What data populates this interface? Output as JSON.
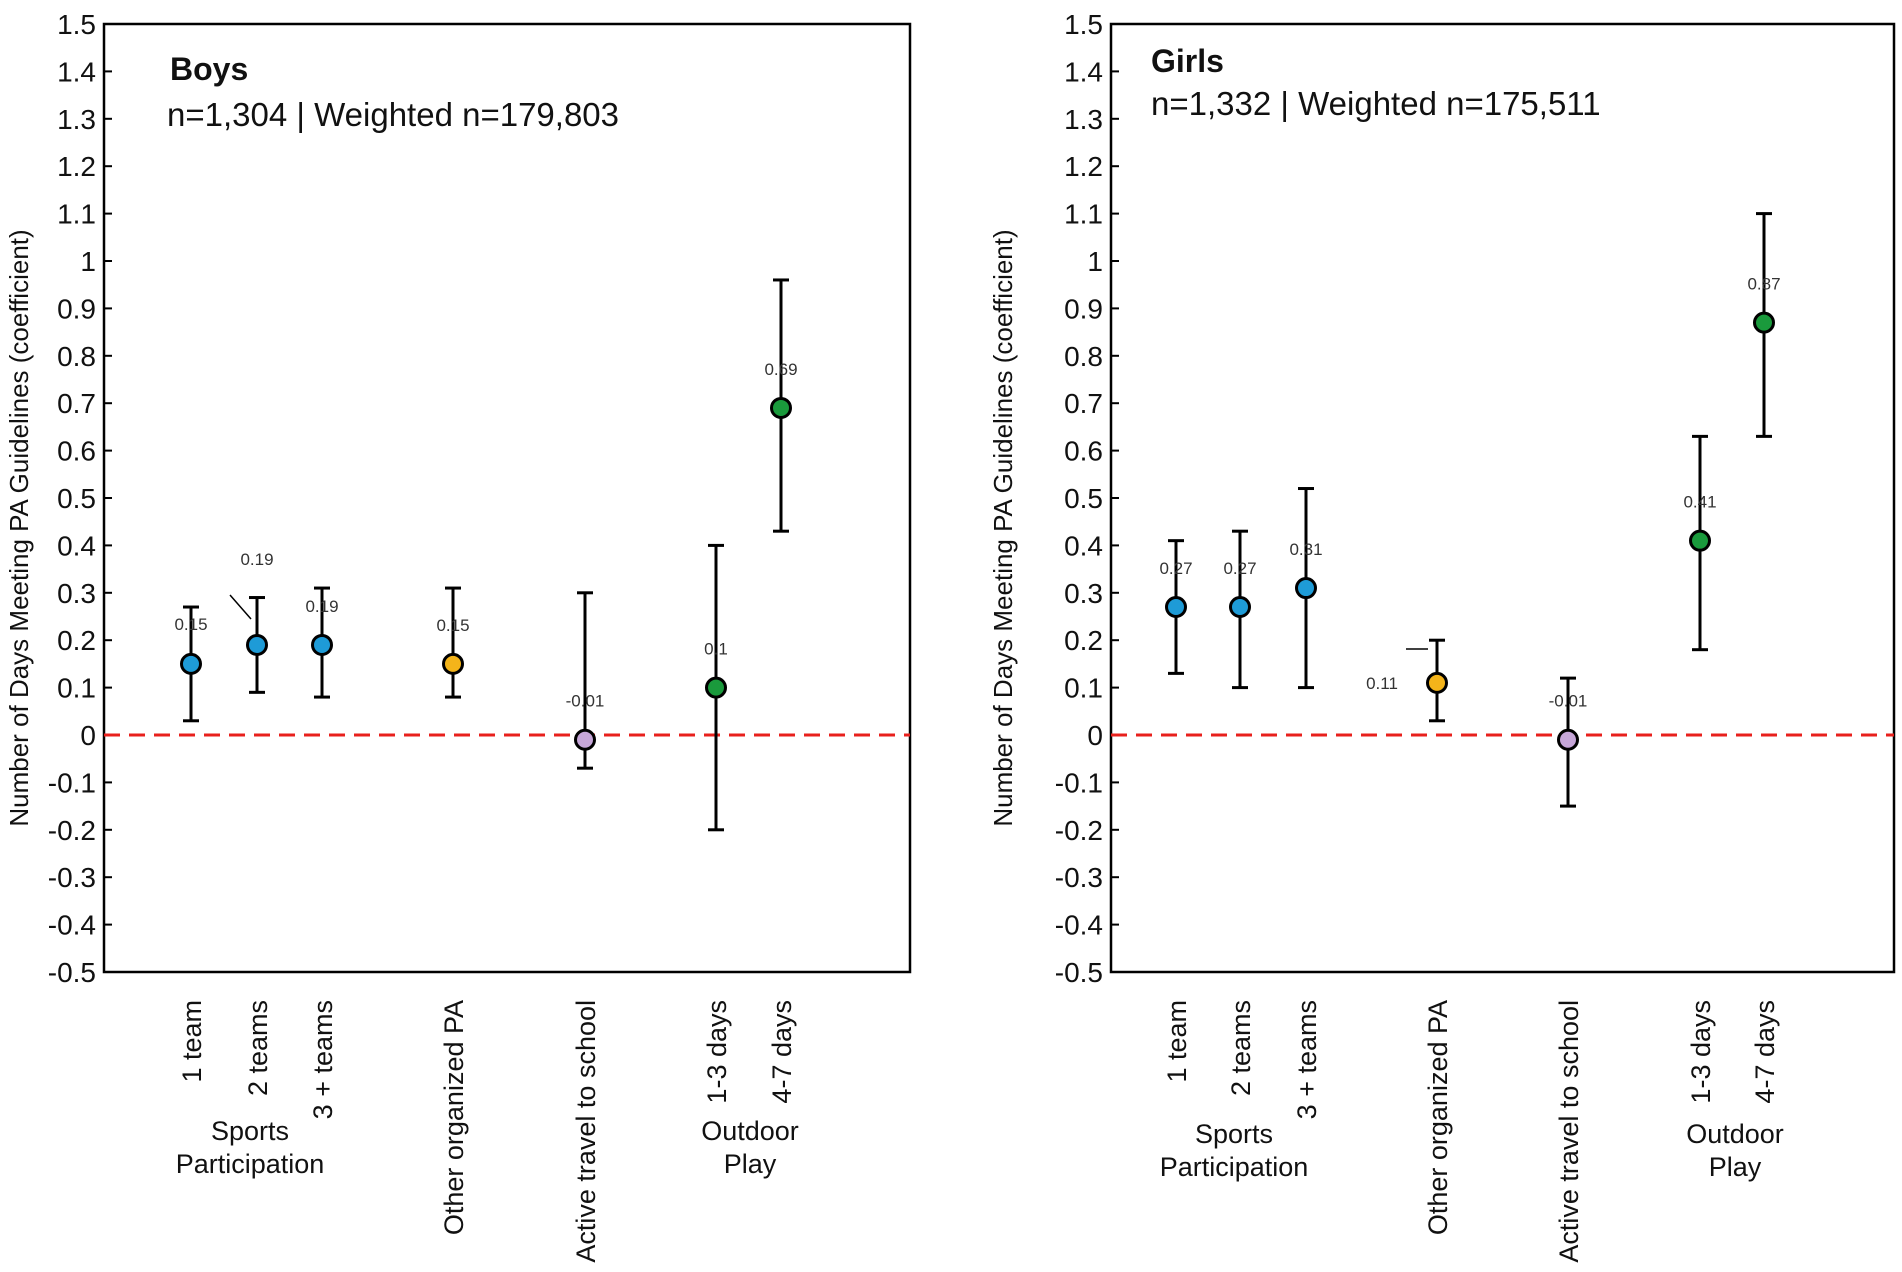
{
  "chart_data": [
    {
      "type": "scatter",
      "title": "Boys",
      "subtitle": "n=1,304 | Weighted n=179,803",
      "ylabel": "Number of Days Meeting PA Guidelines (coefficient)",
      "ylim": [
        -0.5,
        1.5
      ],
      "yticks": [
        "-0.5",
        "-0.4",
        "-0.3",
        "-0.2",
        "-0.1",
        "0",
        "0.1",
        "0.2",
        "0.3",
        "0.4",
        "0.5",
        "0.6",
        "0.7",
        "0.8",
        "0.9",
        "1",
        "1.1",
        "1.2",
        "1.3",
        "1.4",
        "1.5"
      ],
      "reference_line": 0,
      "groups": [
        {
          "label_lines": [
            "Sports",
            "Participation"
          ]
        },
        {
          "label_lines": [
            "Outdoor",
            "Play"
          ]
        }
      ],
      "points": [
        {
          "category": "1 team",
          "value": 0.15,
          "lower": 0.03,
          "upper": 0.27,
          "label": "0.15",
          "color": "#1e9bd7"
        },
        {
          "category": "2 teams",
          "value": 0.19,
          "lower": 0.09,
          "upper": 0.29,
          "label": "0.19",
          "color": "#1e9bd7"
        },
        {
          "category": "3 + teams",
          "value": 0.19,
          "lower": 0.08,
          "upper": 0.31,
          "label": "0.19",
          "color": "#1e9bd7"
        },
        {
          "category": "Other organized PA",
          "value": 0.15,
          "lower": 0.08,
          "upper": 0.31,
          "label": "0.15",
          "color": "#f4b41a"
        },
        {
          "category": "Active travel to school",
          "value": -0.01,
          "lower": -0.07,
          "upper": 0.3,
          "label": "-0.01",
          "color": "#c6a6d8"
        },
        {
          "category": "1-3 days",
          "value": 0.1,
          "lower": -0.2,
          "upper": 0.4,
          "label": "0.1",
          "color": "#1a9a3c"
        },
        {
          "category": "4-7 days",
          "value": 0.69,
          "lower": 0.43,
          "upper": 0.96,
          "label": "0.69",
          "color": "#1a9a3c"
        }
      ]
    },
    {
      "type": "scatter",
      "title": "Girls",
      "subtitle": "n=1,332 | Weighted n=175,511",
      "ylabel": "Number of Days Meeting PA Guidelines (coefficient)",
      "ylim": [
        -0.5,
        1.5
      ],
      "yticks": [
        "-0.5",
        "-0.4",
        "-0.3",
        "-0.2",
        "-0.1",
        "0",
        "0.1",
        "0.2",
        "0.3",
        "0.4",
        "0.5",
        "0.6",
        "0.7",
        "0.8",
        "0.9",
        "1",
        "1.1",
        "1.2",
        "1.3",
        "1.4",
        "1.5"
      ],
      "reference_line": 0,
      "groups": [
        {
          "label_lines": [
            "Sports",
            "Participation"
          ]
        },
        {
          "label_lines": [
            "Outdoor",
            "Play"
          ]
        }
      ],
      "points": [
        {
          "category": "1 team",
          "value": 0.27,
          "lower": 0.13,
          "upper": 0.41,
          "label": "0.27",
          "color": "#1e9bd7"
        },
        {
          "category": "2 teams",
          "value": 0.27,
          "lower": 0.1,
          "upper": 0.43,
          "label": "0.27",
          "color": "#1e9bd7"
        },
        {
          "category": "3 + teams",
          "value": 0.31,
          "lower": 0.1,
          "upper": 0.52,
          "label": "0.31",
          "color": "#1e9bd7"
        },
        {
          "category": "Other organized PA",
          "value": 0.11,
          "lower": 0.03,
          "upper": 0.2,
          "label": "0.11",
          "color": "#f4b41a"
        },
        {
          "category": "Active travel to school",
          "value": -0.01,
          "lower": -0.15,
          "upper": 0.12,
          "label": "-0.01",
          "color": "#c6a6d8"
        },
        {
          "category": "1-3 days",
          "value": 0.41,
          "lower": 0.18,
          "upper": 0.63,
          "label": "0.41",
          "color": "#1a9a3c"
        },
        {
          "category": "4-7 days",
          "value": 0.87,
          "lower": 0.63,
          "upper": 1.1,
          "label": "0.87",
          "color": "#1a9a3c"
        }
      ]
    }
  ]
}
